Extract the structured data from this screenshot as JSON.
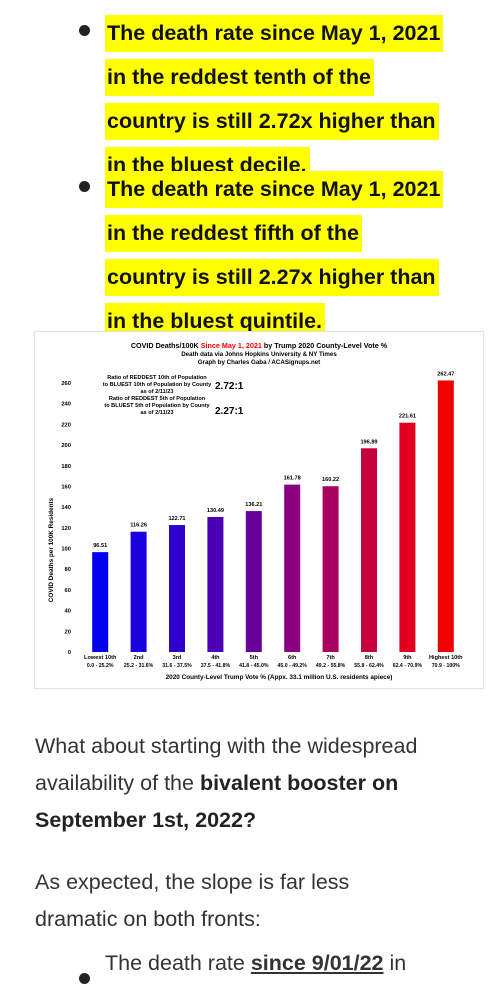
{
  "bullets": [
    {
      "lines": [
        "The death rate since May 1, 2021",
        "in the reddest tenth of the",
        "country is still 2.72x higher than",
        "in the bluest decile."
      ]
    },
    {
      "lines": [
        "The death rate since May 1, 2021",
        "in the reddest fifth of the",
        "country is still 2.27x higher than",
        "in the bluest quintile."
      ]
    }
  ],
  "chart_data": {
    "type": "bar",
    "title_a": "COVID Deaths/100K ",
    "title_b": "Since May 1, 2021",
    "title_c": " by Trump 2020 County-Level Vote %",
    "subtitle1": "Death data via Johns Hopkins University & NY Times",
    "subtitle2": "Graph by Charles Gaba / ACASignups.net",
    "ratio1": {
      "lines": [
        "Ratio of REDDEST 10th of Population",
        "to BLUEST 10th of Population by County",
        "as of 2/11/23"
      ],
      "value": "2.72:1"
    },
    "ratio2": {
      "lines": [
        "Ratio of REDDEST 5th of Population",
        "to BLUEST 5th of Population by County",
        "as of 2/11/23"
      ],
      "value": "2.27:1"
    },
    "categories": [
      "Lowest 10th",
      "2nd",
      "3rd",
      "4th",
      "5th",
      "6th",
      "7th",
      "8th",
      "9th",
      "Highest 10th"
    ],
    "ranges": [
      "0.0 - 25.2%",
      "25.2 - 31.6%",
      "31.6 - 37.5%",
      "37.5 - 41.8%",
      "41.8 - 45.0%",
      "45.0 - 49.2%",
      "49.2 - 55.8%",
      "55.8 - 62.4%",
      "62.4 - 70.9%",
      "70.9 - 100%"
    ],
    "values": [
      96.51,
      116.26,
      122.71,
      130.49,
      136.21,
      161.78,
      160.22,
      196.89,
      221.61,
      262.47
    ],
    "value_labels": [
      "96.51",
      "116.26",
      "122.71",
      "130.49",
      "136.21",
      "161.78",
      "160.22",
      "196.89",
      "221.61",
      "262.47"
    ],
    "colors": [
      "#0000ee",
      "#1a00dd",
      "#2d00cc",
      "#4a00b5",
      "#6a009a",
      "#8a0080",
      "#aa0060",
      "#c8003c",
      "#e20020",
      "#f00000"
    ],
    "ylabel": "COVID Deaths per 100K Residents",
    "xlabel": "2020 County-Level Trump Vote % (Appx. 33.1 million U.S. residents apiece)",
    "ylim": [
      0,
      260
    ],
    "yticks": [
      "0",
      "20",
      "40",
      "60",
      "80",
      "100",
      "120",
      "140",
      "160",
      "180",
      "200",
      "220",
      "240",
      "260"
    ],
    "title_highlight_color": "#ff0000"
  },
  "para1_a": "What about starting with the widespread",
  "para1_b": "availability of the ",
  "para1_bold1": "bivalent booster on",
  "para1_bold2": "September 1st, 2022?",
  "para2_a": "As expected, the slope is far less",
  "para2_b": "dramatic on both fronts:",
  "bottom_a": "The ",
  "bottom_b": "death rate ",
  "bottom_c": "since 9/01/22",
  "bottom_d": " in"
}
